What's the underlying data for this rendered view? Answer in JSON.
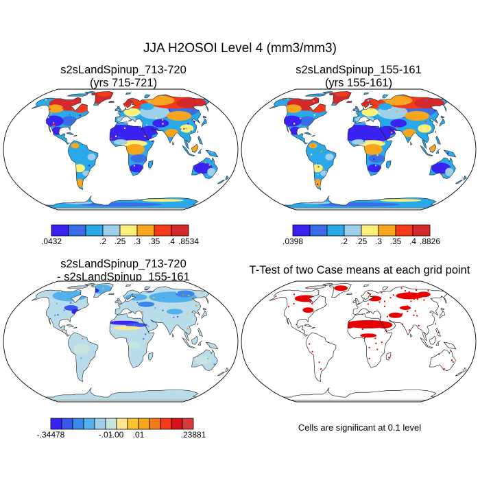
{
  "title": "JJA H2OSOI Level 4 (mm3/mm3)",
  "panels": [
    {
      "id": "p1",
      "title_line1": "s2sLandSpinup_713-720",
      "title_line2": "(yrs 715-721)",
      "colorbar": {
        "colors": [
          "#3a22f2",
          "#3a6ee6",
          "#2aa9ea",
          "#9ed0ec",
          "#fbf07a",
          "#f6a51c",
          "#f53a1a",
          "#d4282a"
        ],
        "labels": [
          ".0432",
          ".2",
          ".25",
          ".3",
          ".35",
          ".4",
          ".8534"
        ]
      }
    },
    {
      "id": "p2",
      "title_line1": "s2sLandSpinup_155-161",
      "title_line2": "(yrs 155-161)",
      "colorbar": {
        "colors": [
          "#3a22f2",
          "#3a6ee6",
          "#2aa9ea",
          "#9ed0ec",
          "#fbf07a",
          "#f6a51c",
          "#f53a1a",
          "#d4282a"
        ],
        "labels": [
          ".0398",
          ".2",
          ".25",
          ".3",
          ".35",
          ".4",
          ".8826"
        ]
      }
    },
    {
      "id": "p3",
      "title_line1": "s2sLandSpinup_713-720",
      "title_line2": "- s2sLandSpinup_155-161",
      "colorbar": {
        "colors": [
          "#3a22f2",
          "#3a55ea",
          "#3a88ea",
          "#52b0ec",
          "#9ed0ec",
          "#c8e4e0",
          "#fde690",
          "#fbc22c",
          "#f6a51c",
          "#f57a1a",
          "#f53a1a",
          "#d4101a",
          "#d43b3a"
        ],
        "labels": [
          "-.34478",
          "-.01",
          "-.00",
          ".01",
          ".23881"
        ]
      }
    },
    {
      "id": "p4",
      "title_line1": "T-Test of two Case means at each grid point",
      "note": "Cells are significant at 0.1 level"
    }
  ]
}
